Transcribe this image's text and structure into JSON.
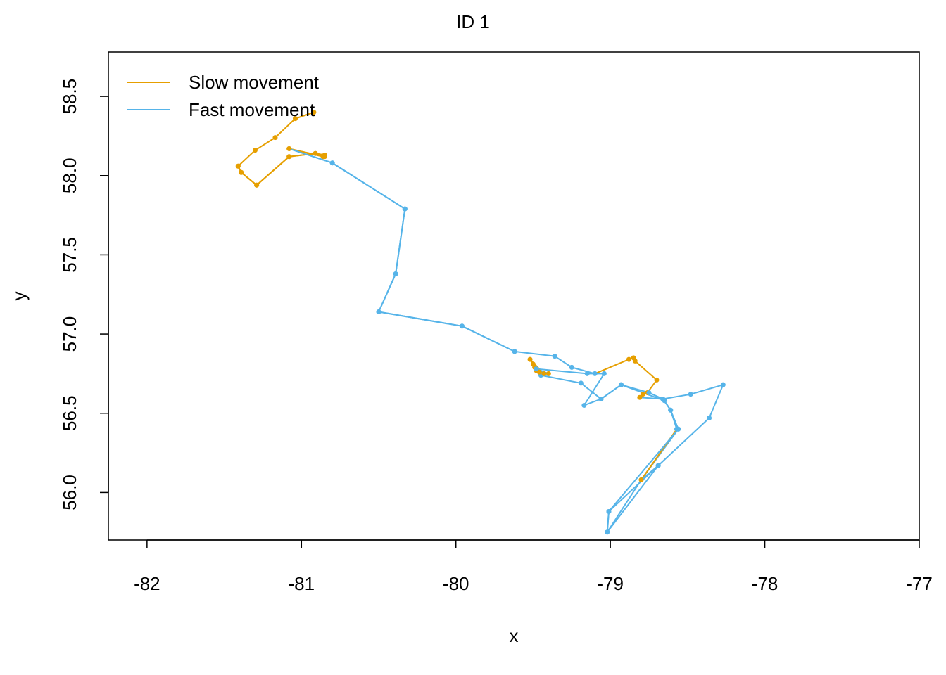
{
  "chart_data": {
    "type": "line",
    "title": "ID 1",
    "xlabel": "x",
    "ylabel": "y",
    "xlim": [
      -82.25,
      -77
    ],
    "ylim": [
      55.7,
      58.78
    ],
    "xticks": [
      -82,
      -81,
      -80,
      -79,
      -78,
      -77
    ],
    "yticks": [
      56.0,
      56.5,
      57.0,
      57.5,
      58.0,
      58.5
    ],
    "xtick_labels": [
      "-82",
      "-81",
      "-80",
      "-79",
      "-78",
      "-77"
    ],
    "ytick_labels": [
      "56.0",
      "56.5",
      "57.0",
      "57.5",
      "58.0",
      "58.5"
    ],
    "grid": false,
    "legend_position": "top-left",
    "colors": {
      "slow": "#E69F00",
      "fast": "#56B4E9"
    },
    "series": [
      {
        "name": "Slow movement",
        "key": "slow"
      },
      {
        "name": "Fast movement",
        "key": "fast"
      }
    ],
    "track": [
      [
        -81.41,
        58.06,
        "slow"
      ],
      [
        -81.39,
        58.02,
        "slow"
      ],
      [
        -81.29,
        57.94,
        "slow"
      ],
      [
        -81.08,
        58.12,
        "slow"
      ],
      [
        -80.91,
        58.14,
        "slow"
      ],
      [
        -80.85,
        58.13,
        "slow"
      ],
      [
        -80.85,
        58.12,
        "slow"
      ],
      [
        -81.08,
        58.17,
        "slow"
      ],
      [
        -80.8,
        58.08,
        "fast"
      ],
      [
        -80.33,
        57.79,
        "fast"
      ],
      [
        -80.39,
        57.38,
        "fast"
      ],
      [
        -80.5,
        57.14,
        "fast"
      ],
      [
        -79.96,
        57.05,
        "fast"
      ],
      [
        -79.62,
        56.89,
        "fast"
      ],
      [
        -79.36,
        56.86,
        "fast"
      ],
      [
        -79.25,
        56.79,
        "fast"
      ],
      [
        -79.1,
        56.75,
        "fast"
      ],
      [
        -78.88,
        56.84,
        "slow"
      ],
      [
        -78.85,
        56.85,
        "slow"
      ],
      [
        -78.84,
        56.83,
        "slow"
      ],
      [
        -78.7,
        56.71,
        "slow"
      ],
      [
        -78.76,
        56.63,
        "slow"
      ],
      [
        -78.79,
        56.62,
        "slow"
      ],
      [
        -78.81,
        56.6,
        "slow"
      ],
      [
        -78.66,
        56.59,
        "fast"
      ],
      [
        -78.48,
        56.62,
        "fast"
      ],
      [
        -78.27,
        56.68,
        "fast"
      ],
      [
        -78.36,
        56.47,
        "fast"
      ],
      [
        -78.69,
        56.17,
        "fast"
      ],
      [
        -79.01,
        55.88,
        "fast"
      ],
      [
        -79.02,
        55.75,
        "fast"
      ],
      [
        -78.8,
        56.08,
        "fast"
      ],
      [
        -78.56,
        56.4,
        "fast"
      ],
      [
        -78.61,
        56.52,
        "fast"
      ],
      [
        -78.65,
        56.58,
        "fast"
      ],
      [
        -78.93,
        56.68,
        "fast"
      ],
      [
        -79.06,
        56.59,
        "fast"
      ],
      [
        -79.19,
        56.69,
        "fast"
      ],
      [
        -79.45,
        56.74,
        "fast"
      ],
      [
        -79.46,
        56.76,
        "slow"
      ],
      [
        -79.48,
        56.77,
        "slow"
      ],
      [
        -79.49,
        56.79,
        "slow"
      ],
      [
        -79.5,
        56.81,
        "slow"
      ],
      [
        -79.52,
        56.84,
        "slow"
      ],
      [
        -79.43,
        56.75,
        "slow"
      ],
      [
        -79.4,
        56.75,
        "slow"
      ],
      [
        -79.48,
        56.78,
        "fast"
      ],
      [
        -79.15,
        56.75,
        "fast"
      ],
      [
        -79.04,
        56.75,
        "fast"
      ],
      [
        -79.17,
        56.55,
        "fast"
      ],
      [
        -79.06,
        56.59,
        "fast"
      ],
      [
        -78.93,
        56.68,
        "fast"
      ],
      [
        -78.75,
        56.63,
        "fast"
      ],
      [
        -78.66,
        56.59,
        "fast"
      ],
      [
        -78.61,
        56.52,
        "fast"
      ],
      [
        -78.57,
        56.4,
        "fast"
      ],
      [
        -78.8,
        56.08,
        "slow"
      ],
      [
        -78.69,
        56.17,
        "fast"
      ],
      [
        -79.02,
        55.75,
        "fast"
      ],
      [
        -79.01,
        55.88,
        "fast"
      ],
      [
        -78.56,
        56.4,
        "fast"
      ]
    ],
    "track_main": [
      [
        -80.92,
        58.4,
        "slow"
      ],
      [
        -81.04,
        58.36,
        "slow"
      ],
      [
        -81.17,
        58.24,
        "slow"
      ],
      [
        -81.3,
        58.16,
        "slow"
      ],
      [
        -81.41,
        58.06,
        "slow"
      ],
      [
        -81.39,
        58.02,
        "slow"
      ],
      [
        -81.29,
        57.94,
        "slow"
      ],
      [
        -81.08,
        58.12,
        "slow"
      ],
      [
        -80.91,
        58.14,
        "slow"
      ],
      [
        -80.85,
        58.13,
        "slow"
      ],
      [
        -80.86,
        58.12,
        "slow"
      ],
      [
        -81.08,
        58.17,
        "slow"
      ],
      [
        -80.8,
        58.08,
        "fast"
      ],
      [
        -80.33,
        57.79,
        "fast"
      ],
      [
        -80.39,
        57.38,
        "fast"
      ],
      [
        -80.5,
        57.14,
        "fast"
      ],
      [
        -79.96,
        57.05,
        "fast"
      ],
      [
        -79.62,
        56.89,
        "fast"
      ]
    ],
    "segments_note": ""
  }
}
